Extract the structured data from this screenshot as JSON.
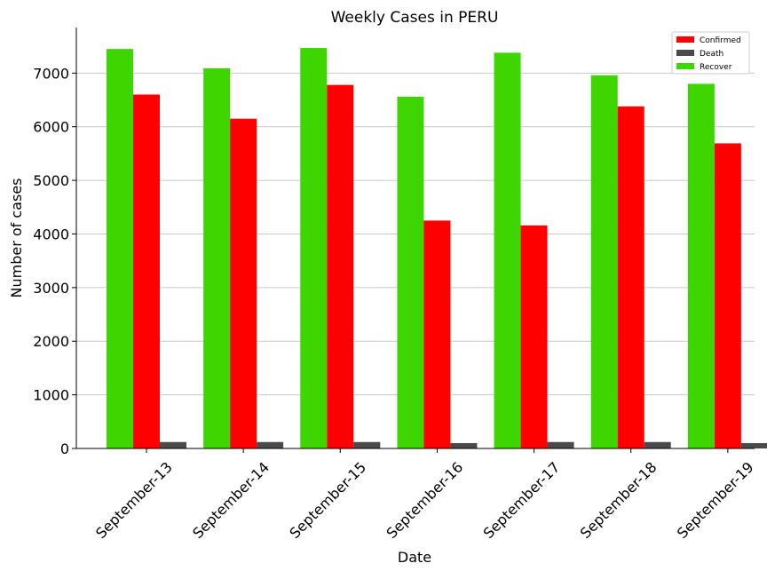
{
  "chart_data": {
    "type": "bar",
    "title": "Weekly Cases in PERU",
    "xlabel": "Date",
    "ylabel": "Number of cases",
    "categories": [
      "September-13",
      "September-14",
      "September-15",
      "September-16",
      "September-17",
      "September-18",
      "September-19"
    ],
    "series": [
      {
        "name": "Recover",
        "color": "#3dd600",
        "values": [
          7450,
          7090,
          7470,
          6560,
          7380,
          6960,
          6800
        ]
      },
      {
        "name": "Confirmed",
        "color": "#ff0000",
        "values": [
          6600,
          6150,
          6780,
          4250,
          4160,
          6380,
          5690
        ]
      },
      {
        "name": "Death",
        "color": "#4a4a4a",
        "values": [
          120,
          120,
          120,
          100,
          120,
          120,
          100
        ]
      }
    ],
    "legend_order": [
      "Confirmed",
      "Death",
      "Recover"
    ],
    "legend_position": "top-right",
    "ylim": [
      0,
      7850
    ],
    "yticks": [
      0,
      1000,
      2000,
      3000,
      4000,
      5000,
      6000,
      7000
    ],
    "grid": "horizontal"
  }
}
